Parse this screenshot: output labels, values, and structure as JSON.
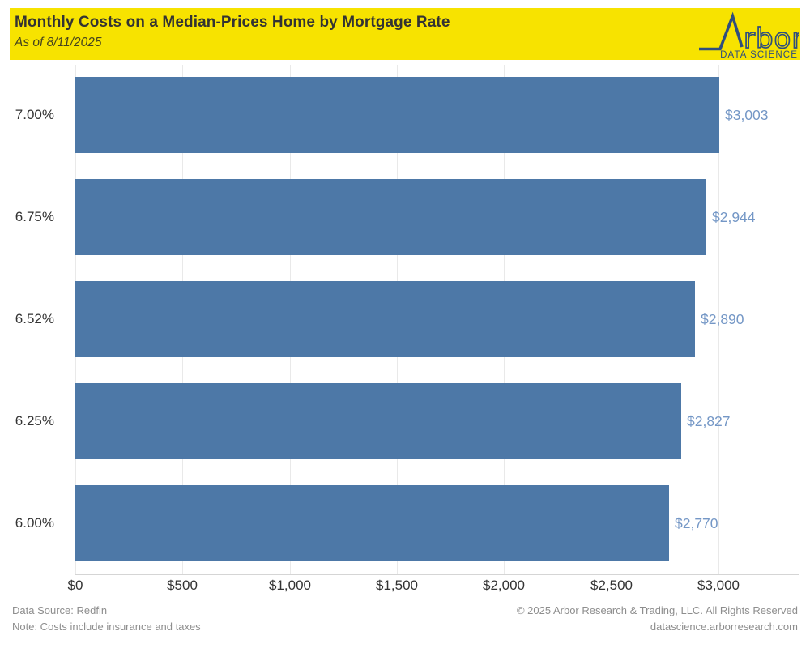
{
  "header": {
    "title": "Monthly Costs on a Median-Prices Home by Mortgage Rate",
    "subtitle": "As of 8/11/2025",
    "background_color": "#F7E300",
    "logo": {
      "wordmark": "rbor",
      "tagline": "DATA SCIENCE",
      "color": "#2F4E7D",
      "icon": "line-peak-icon"
    }
  },
  "chart_data": {
    "type": "bar",
    "orientation": "horizontal",
    "title": "Monthly Costs on a Median-Prices Home by Mortgage Rate",
    "subtitle": "As of 8/11/2025",
    "categories": [
      "7.00%",
      "6.75%",
      "6.52%",
      "6.25%",
      "6.00%"
    ],
    "values": [
      3003,
      2944,
      2890,
      2827,
      2770
    ],
    "value_labels": [
      "$3,003",
      "$2,944",
      "$2,890",
      "$2,827",
      "$2,770"
    ],
    "xlabel": "",
    "ylabel": "",
    "xlim": [
      0,
      3000
    ],
    "xticks": [
      0,
      500,
      1000,
      1500,
      2000,
      2500,
      3000
    ],
    "xtick_labels": [
      "$0",
      "$500",
      "$1,000",
      "$1,500",
      "$2,000",
      "$2,500",
      "$3,000"
    ],
    "grid": true,
    "legend": false,
    "bar_color": "#4D78A7",
    "value_label_color": "#7497C6",
    "gridline_color": "#E9E9E9"
  },
  "footer": {
    "source": "Data Source: Redfin",
    "note": "Note: Costs include insurance and taxes",
    "copyright": "© 2025 Arbor Research & Trading, LLC. All Rights Reserved",
    "url": "datascience.arborresearch.com"
  }
}
